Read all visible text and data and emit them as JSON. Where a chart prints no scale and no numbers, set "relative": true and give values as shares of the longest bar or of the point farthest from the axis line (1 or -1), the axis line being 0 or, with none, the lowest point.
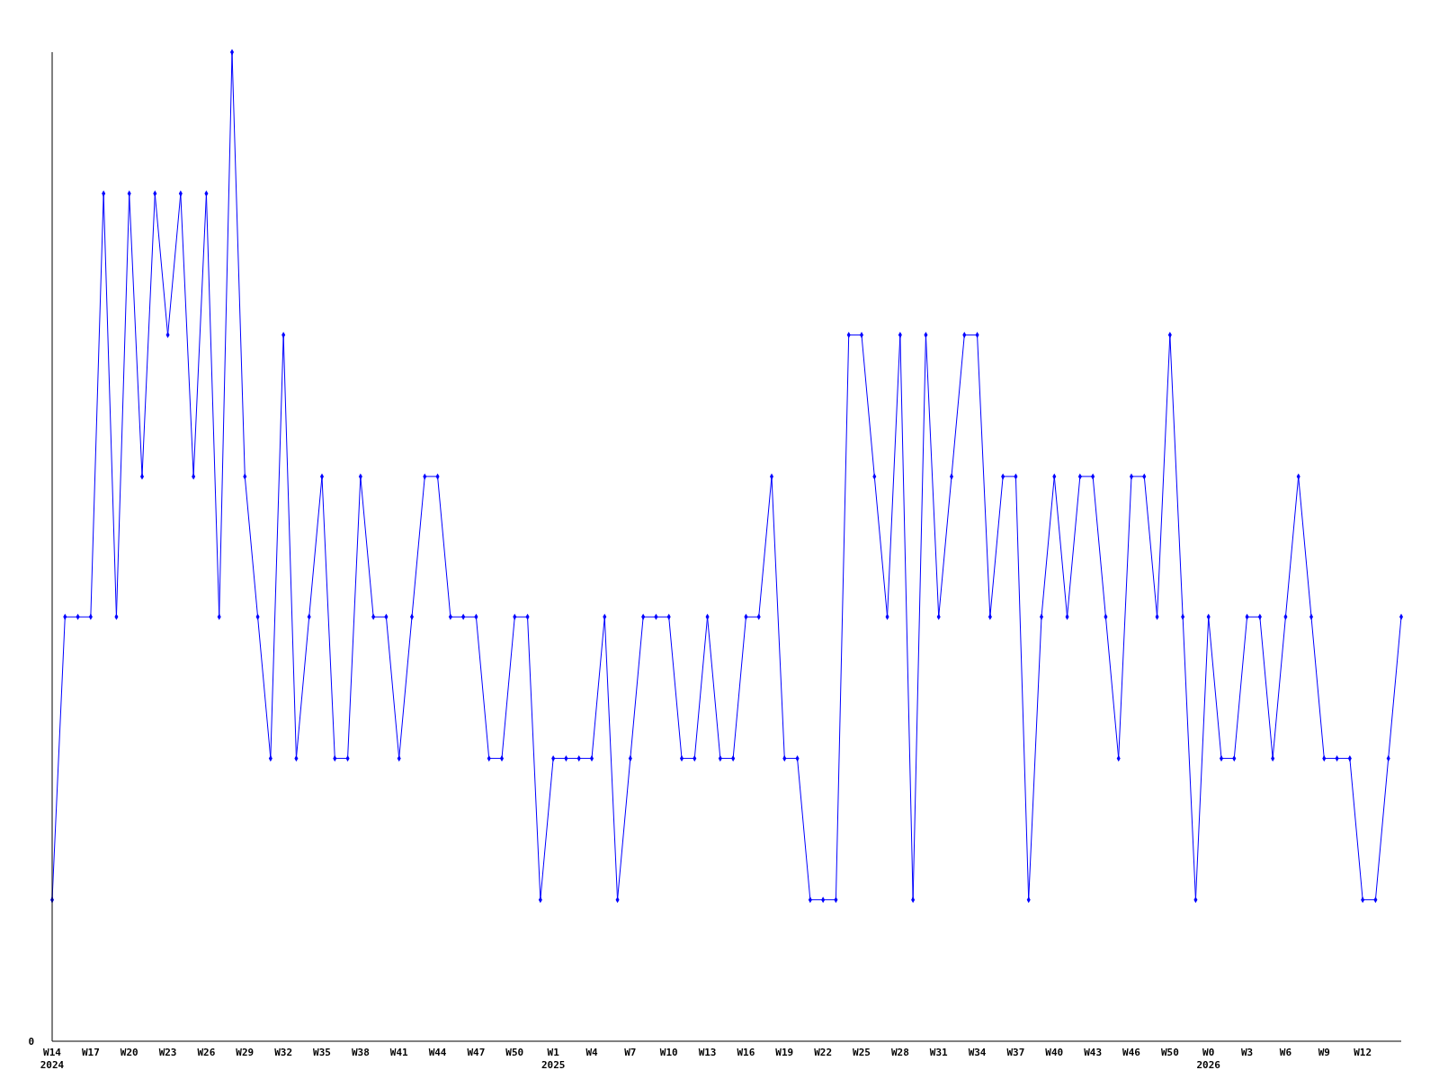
{
  "chart_data": {
    "type": "line",
    "relative": true,
    "marker": "diamond",
    "line_style": "solid",
    "annotations": [
      "0"
    ],
    "categories": [
      "W14\n2024",
      null,
      null,
      "W17",
      null,
      null,
      "W20",
      null,
      null,
      "W23",
      null,
      null,
      "W26",
      null,
      null,
      "W29",
      null,
      null,
      "W32",
      null,
      null,
      "W35",
      null,
      null,
      "W38",
      null,
      null,
      "W41",
      null,
      null,
      "W44",
      null,
      null,
      "W47",
      null,
      null,
      "W50",
      null,
      null,
      "W1\n2025",
      null,
      null,
      "W4",
      null,
      null,
      "W7",
      null,
      null,
      "W10",
      null,
      null,
      "W13",
      null,
      null,
      "W16",
      null,
      null,
      "W19",
      null,
      null,
      "W22",
      null,
      null,
      "W25",
      null,
      null,
      "W28",
      null,
      null,
      "W31",
      null,
      null,
      "W34",
      null,
      null,
      "W37",
      null,
      null,
      "W40",
      null,
      null,
      "W43",
      null,
      null,
      "W46",
      null,
      null,
      "W50",
      null,
      null,
      "W0\n2026",
      null,
      null,
      "W3",
      null,
      null,
      "W6",
      null,
      null,
      "W9",
      null,
      null,
      "W12",
      null,
      null,
      null
    ],
    "series": [
      {
        "color": "#0000ff",
        "values": [
          0.143,
          0.429,
          0.429,
          0.429,
          0.857,
          0.429,
          0.857,
          0.571,
          0.857,
          0.714,
          0.857,
          0.571,
          0.857,
          0.429,
          1,
          0.571,
          0.429,
          0.286,
          0.714,
          0.286,
          0.429,
          0.571,
          0.286,
          0.286,
          0.571,
          0.429,
          0.429,
          0.286,
          0.429,
          0.571,
          0.571,
          0.429,
          0.429,
          0.429,
          0.286,
          0.286,
          0.429,
          0.429,
          0.143,
          0.286,
          0.286,
          0.286,
          0.286,
          0.429,
          0.143,
          0.286,
          0.429,
          0.429,
          0.429,
          0.286,
          0.286,
          0.429,
          0.286,
          0.286,
          0.429,
          0.429,
          0.571,
          0.286,
          0.286,
          0.143,
          0.143,
          0.143,
          0.714,
          0.714,
          0.571,
          0.429,
          0.714,
          0.143,
          0.714,
          0.429,
          0.571,
          0.714,
          0.714,
          0.429,
          0.571,
          0.571,
          0.143,
          0.429,
          0.571,
          0.429,
          0.571,
          0.571,
          0.429,
          0.286,
          0.571,
          0.571,
          0.429,
          0.714,
          0.429,
          0.143,
          0.429,
          0.286,
          0.286,
          0.429,
          0.429,
          0.286,
          0.429,
          0.571,
          0.429,
          0.286,
          0.286,
          0.286,
          0.143,
          0.143,
          0.286,
          0.429
        ]
      }
    ]
  }
}
